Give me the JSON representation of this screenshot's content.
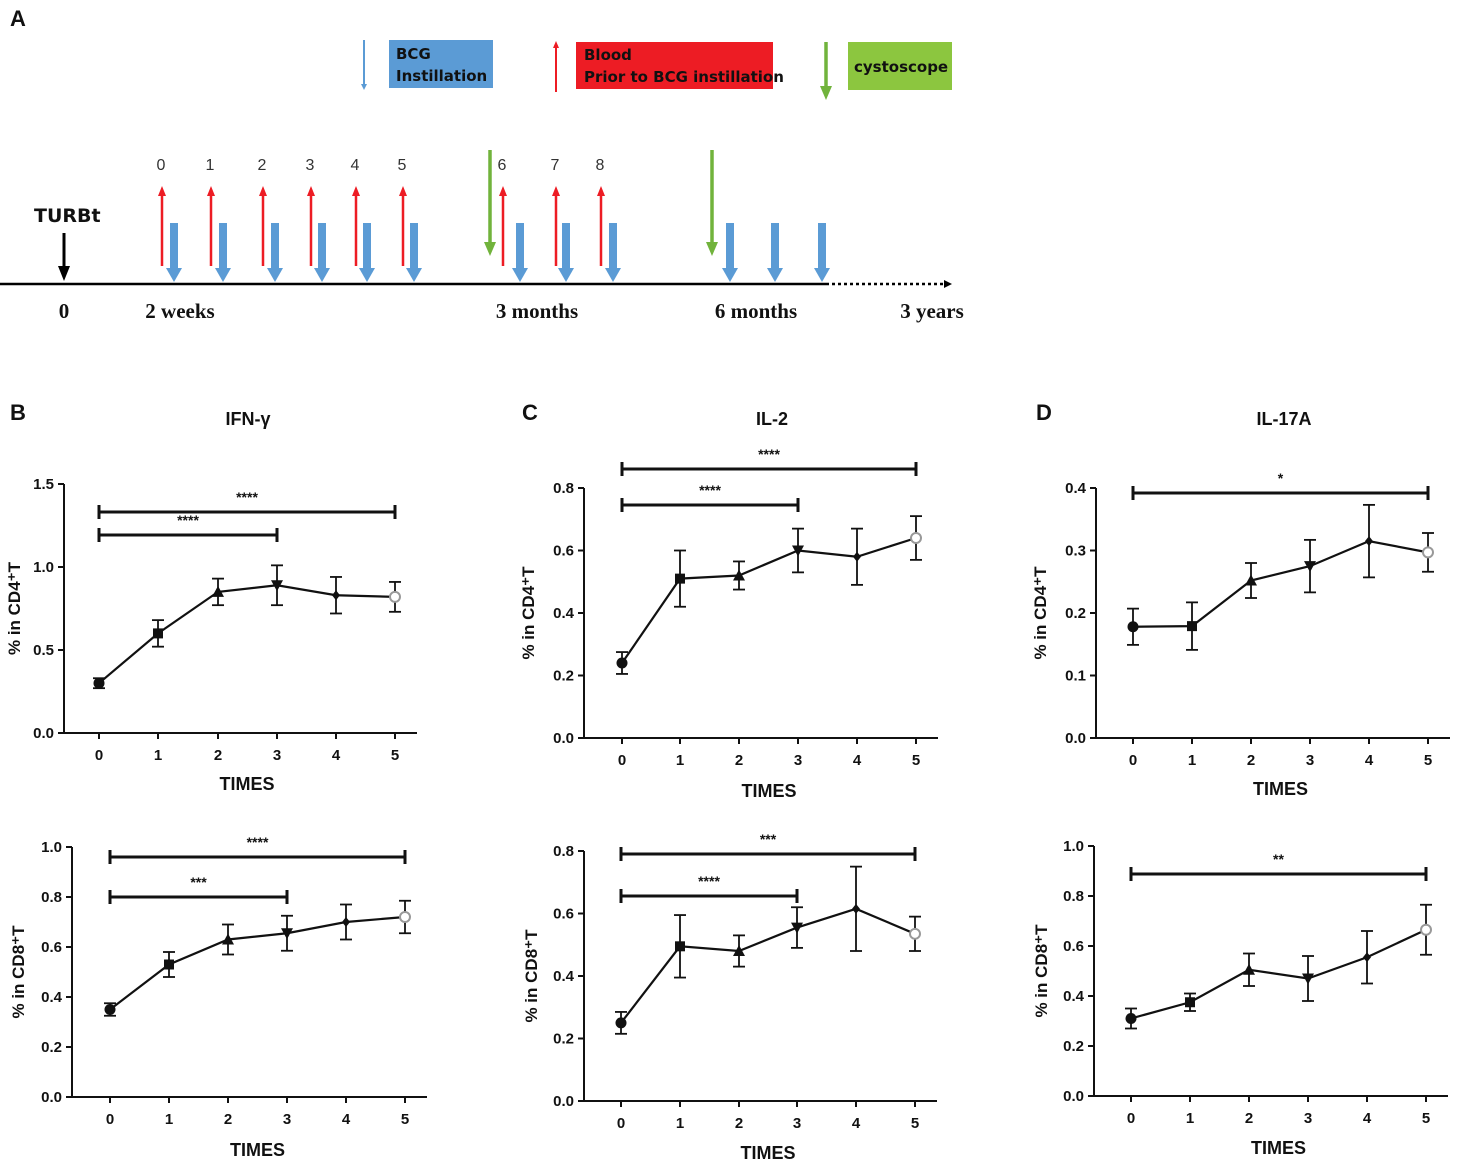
{
  "panel_labels": {
    "A": "A",
    "B": "B",
    "C": "C",
    "D": "D"
  },
  "timeline": {
    "legend": {
      "bcg_line1": "BCG",
      "bcg_line2": "Instillation",
      "blood_line1": "Blood",
      "blood_line2": "Prior to BCG instillation",
      "cystoscope": "cystoscope"
    },
    "colors": {
      "bcg": "#5b9bd5",
      "blood": "#ed1c24",
      "cystoscope": "#71b33c",
      "turbt": "#000000"
    },
    "turbt_label": "TURBt",
    "axis_labels": [
      "0",
      "2 weeks",
      "3 months",
      "6 months",
      "3 years"
    ],
    "blood_numbers": [
      "0",
      "1",
      "2",
      "3",
      "4",
      "5",
      "6",
      "7",
      "8"
    ]
  },
  "chart_data": [
    {
      "id": "B-CD4",
      "type": "line",
      "title": "IFN-γ",
      "xlabel": "TIMES",
      "ylabel": "% in CD4⁺T",
      "categories": [
        "0",
        "1",
        "2",
        "3",
        "4",
        "5"
      ],
      "values": [
        0.3,
        0.6,
        0.85,
        0.89,
        0.83,
        0.82
      ],
      "errors": [
        0.03,
        0.08,
        0.08,
        0.12,
        0.11,
        0.09
      ],
      "ylim": [
        0,
        1.5
      ],
      "yticks": [
        "0.0",
        "0.5",
        "1.0",
        "1.5"
      ],
      "markers": [
        "circle",
        "square",
        "triangle-up",
        "triangle-down",
        "diamond",
        "open-circle"
      ],
      "significance": [
        {
          "from": 0,
          "to": 5,
          "label": "****"
        },
        {
          "from": 0,
          "to": 3,
          "label": "****"
        }
      ]
    },
    {
      "id": "C-CD4",
      "type": "line",
      "title": "IL-2",
      "xlabel": "TIMES",
      "ylabel": "% in CD4⁺T",
      "categories": [
        "0",
        "1",
        "2",
        "3",
        "4",
        "5"
      ],
      "values": [
        0.24,
        0.51,
        0.52,
        0.6,
        0.58,
        0.64
      ],
      "errors": [
        0.035,
        0.09,
        0.045,
        0.07,
        0.09,
        0.07
      ],
      "ylim": [
        0,
        0.8
      ],
      "yticks": [
        "0.0",
        "0.2",
        "0.4",
        "0.6",
        "0.8"
      ],
      "markers": [
        "circle",
        "square",
        "triangle-up",
        "triangle-down",
        "diamond",
        "open-circle"
      ],
      "significance": [
        {
          "from": 0,
          "to": 5,
          "label": "****"
        },
        {
          "from": 0,
          "to": 3,
          "label": "****"
        }
      ]
    },
    {
      "id": "D-CD4",
      "type": "line",
      "title": "IL-17A",
      "xlabel": "TIMES",
      "ylabel": "% in CD4⁺T",
      "categories": [
        "0",
        "1",
        "2",
        "3",
        "4",
        "5"
      ],
      "values": [
        0.178,
        0.179,
        0.252,
        0.275,
        0.315,
        0.297
      ],
      "errors": [
        0.029,
        0.038,
        0.028,
        0.042,
        0.058,
        0.031
      ],
      "ylim": [
        0,
        0.4
      ],
      "yticks": [
        "0.0",
        "0.1",
        "0.2",
        "0.3",
        "0.4"
      ],
      "markers": [
        "circle",
        "square",
        "triangle-up",
        "triangle-down",
        "diamond",
        "open-circle"
      ],
      "significance": [
        {
          "from": 0,
          "to": 5,
          "label": "*"
        }
      ]
    },
    {
      "id": "B-CD8",
      "type": "line",
      "title": "",
      "xlabel": "TIMES",
      "ylabel": "% in CD8⁺T",
      "categories": [
        "0",
        "1",
        "2",
        "3",
        "4",
        "5"
      ],
      "values": [
        0.35,
        0.53,
        0.63,
        0.655,
        0.7,
        0.72
      ],
      "errors": [
        0.025,
        0.05,
        0.06,
        0.07,
        0.07,
        0.065
      ],
      "ylim": [
        0,
        1.0
      ],
      "yticks": [
        "0.0",
        "0.2",
        "0.4",
        "0.6",
        "0.8",
        "1.0"
      ],
      "markers": [
        "circle",
        "square",
        "triangle-up",
        "triangle-down",
        "diamond",
        "open-circle"
      ],
      "significance": [
        {
          "from": 0,
          "to": 5,
          "label": "****"
        },
        {
          "from": 0,
          "to": 3,
          "label": "***"
        }
      ]
    },
    {
      "id": "C-CD8",
      "type": "line",
      "title": "",
      "xlabel": "TIMES",
      "ylabel": "% in CD8⁺T",
      "categories": [
        "0",
        "1",
        "2",
        "3",
        "4",
        "5"
      ],
      "values": [
        0.25,
        0.495,
        0.48,
        0.555,
        0.615,
        0.535
      ],
      "errors": [
        0.035,
        0.1,
        0.05,
        0.065,
        0.135,
        0.055
      ],
      "ylim": [
        0,
        0.8
      ],
      "yticks": [
        "0.0",
        "0.2",
        "0.4",
        "0.6",
        "0.8"
      ],
      "markers": [
        "circle",
        "square",
        "triangle-up",
        "triangle-down",
        "diamond",
        "open-circle"
      ],
      "significance": [
        {
          "from": 0,
          "to": 5,
          "label": "***"
        },
        {
          "from": 0,
          "to": 3,
          "label": "****"
        }
      ]
    },
    {
      "id": "D-CD8",
      "type": "line",
      "title": "",
      "xlabel": "TIMES",
      "ylabel": "% in CD8⁺T",
      "categories": [
        "0",
        "1",
        "2",
        "3",
        "4",
        "5"
      ],
      "values": [
        0.31,
        0.375,
        0.505,
        0.47,
        0.555,
        0.665
      ],
      "errors": [
        0.04,
        0.035,
        0.065,
        0.09,
        0.105,
        0.1
      ],
      "ylim": [
        0,
        1.0
      ],
      "yticks": [
        "0.0",
        "0.2",
        "0.4",
        "0.6",
        "0.8",
        "1.0"
      ],
      "markers": [
        "circle",
        "square",
        "triangle-up",
        "triangle-down",
        "diamond",
        "open-circle"
      ],
      "significance": [
        {
          "from": 0,
          "to": 5,
          "label": "**"
        }
      ]
    }
  ]
}
